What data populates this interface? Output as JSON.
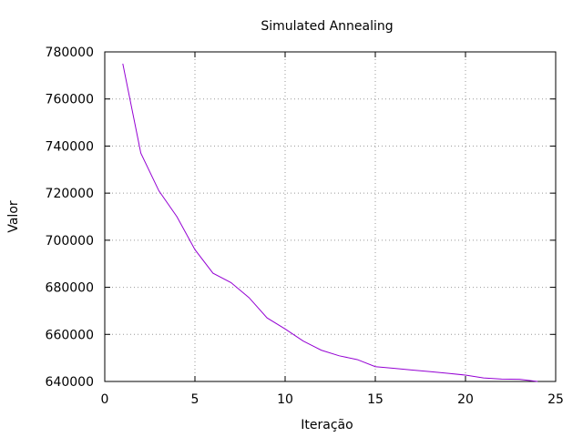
{
  "chart_data": {
    "type": "line",
    "title": "Simulated Annealing",
    "xlabel": "Iteração",
    "ylabel": "Valor",
    "xlim": [
      0,
      25
    ],
    "ylim": [
      640000,
      780000
    ],
    "x_ticks": [
      0,
      5,
      10,
      15,
      20,
      25
    ],
    "y_ticks": [
      640000,
      660000,
      680000,
      700000,
      720000,
      740000,
      760000,
      780000
    ],
    "x_tick_labels": [
      "0",
      "5",
      "10",
      "15",
      "20",
      "25"
    ],
    "y_tick_labels": [
      "640000",
      "660000",
      "680000",
      "700000",
      "720000",
      "740000",
      "760000",
      "780000"
    ],
    "grid": true,
    "grid_style": "dotted",
    "legend": false,
    "series": [
      {
        "color": "#9400d3",
        "x": [
          1,
          2,
          3,
          4,
          5,
          6,
          7,
          8,
          9,
          10,
          11,
          12,
          13,
          14,
          15,
          16,
          17,
          18,
          19,
          20,
          21,
          22,
          23,
          24
        ],
        "y": [
          775000,
          737000,
          721000,
          710000,
          696000,
          686000,
          682000,
          675600,
          667000,
          662300,
          657200,
          653300,
          650900,
          649300,
          646300,
          645600,
          644900,
          644200,
          643500,
          642700,
          641500,
          641000,
          640900,
          640000
        ]
      }
    ]
  }
}
